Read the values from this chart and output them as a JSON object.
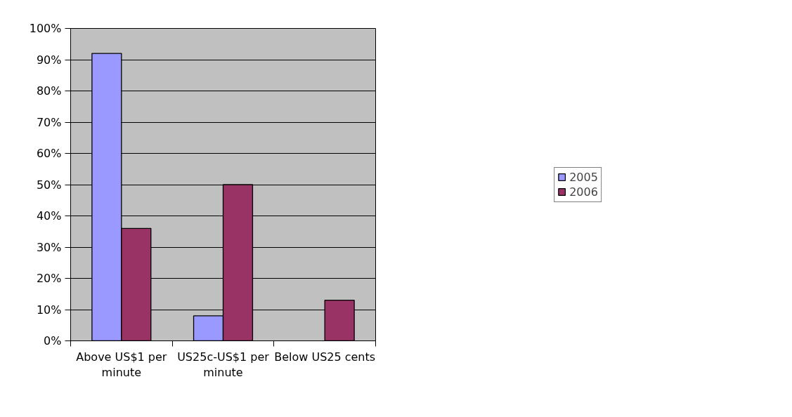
{
  "chart_data": {
    "type": "bar",
    "categories": [
      "Above US$1 per minute",
      "US25c-US$1 per minute",
      "Below US25 cents"
    ],
    "series": [
      {
        "name": "2005",
        "color": "#9999ff",
        "values": [
          92,
          8,
          null
        ]
      },
      {
        "name": "2006",
        "color": "#993366",
        "values": [
          36,
          50,
          13
        ]
      }
    ],
    "ylim": [
      0,
      100
    ],
    "yticks": [
      {
        "value": 0,
        "label": "0%"
      },
      {
        "value": 10,
        "label": "10%"
      },
      {
        "value": 20,
        "label": "20%"
      },
      {
        "value": 30,
        "label": "30%"
      },
      {
        "value": 40,
        "label": "40%"
      },
      {
        "value": 50,
        "label": "50%"
      },
      {
        "value": 60,
        "label": "60%"
      },
      {
        "value": 70,
        "label": "70%"
      },
      {
        "value": 80,
        "label": "80%"
      },
      {
        "value": 90,
        "label": "90%"
      },
      {
        "value": 100,
        "label": "100%"
      }
    ],
    "grid": "y",
    "legend": "right"
  }
}
